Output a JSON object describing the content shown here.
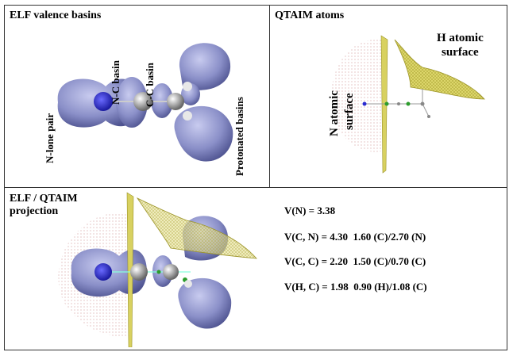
{
  "panels": {
    "elf": {
      "title": "ELF valence basins",
      "labels": {
        "lone_pair": "N-lone pair",
        "nc_basin": "N-C basin",
        "cc_basin": "C-C basin",
        "protonated": "Protonated basins"
      }
    },
    "qtaim": {
      "title": "QTAIM atoms",
      "labels": {
        "h_surface_line1": "H atomic",
        "h_surface_line2": "surface",
        "n_surface_line1": "N atomic",
        "n_surface_line2": "surface"
      }
    },
    "projection": {
      "title_line1": "ELF / QTAIM",
      "title_line2": "projection"
    },
    "values": {
      "vn": "V(N) = 3.38",
      "vcn": "V(C, N) = 4.30  1.60 (C)/2.70 (N)",
      "vcc": "V(C, C) = 2.20  1.50 (C)/0.70 (C)",
      "vhc": "V(H, C) = 1.98  0.90 (H)/1.08 (C)"
    }
  },
  "colors": {
    "basin": "#8a8fc8",
    "basin_dark": "#5a5f9e",
    "nitrogen": "#2a2ad0",
    "carbon": "#8c8c8c",
    "surface": "#c8c23a",
    "dots": "#c98a8a"
  }
}
